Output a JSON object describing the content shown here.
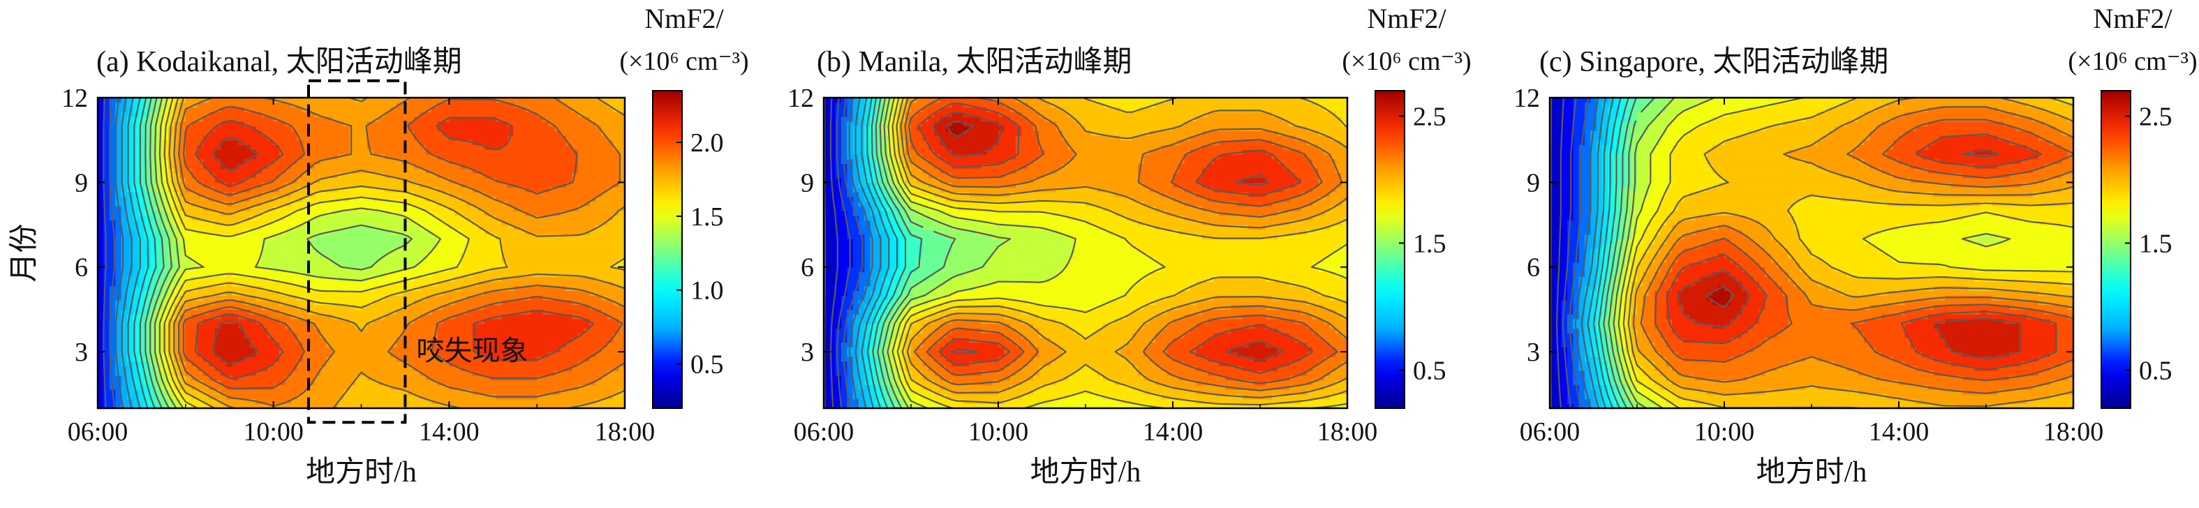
{
  "colors": {
    "colormap": [
      "#00008f",
      "#0000ff",
      "#00b0ff",
      "#00ffff",
      "#7fff7f",
      "#ffff00",
      "#ffa000",
      "#ff3000",
      "#a00000"
    ],
    "contour_line": "#5a5a5a",
    "annotation": "#000000"
  },
  "chart_data": [
    {
      "type": "heatmap",
      "title": "(a) Kodaikanal, 太阳活动峰期",
      "xlabel": "地方时/h",
      "ylabel": "月份",
      "x_ticks": [
        "06:00",
        "10:00",
        "14:00",
        "18:00"
      ],
      "y_ticks": [
        "3",
        "6",
        "9",
        "12"
      ],
      "x_range": [
        6,
        18
      ],
      "y_range": [
        1,
        12
      ],
      "x": [
        6,
        7,
        8,
        9,
        10,
        11,
        12,
        13,
        14,
        15,
        16,
        17,
        18
      ],
      "y": [
        1,
        2,
        3,
        4,
        5,
        6,
        7,
        8,
        9,
        10,
        11,
        12
      ],
      "z": [
        [
          0.4,
          0.9,
          1.5,
          1.75,
          1.85,
          1.8,
          1.7,
          1.7,
          1.75,
          1.8,
          1.8,
          1.75,
          1.7
        ],
        [
          0.4,
          1.0,
          1.8,
          2.05,
          2.0,
          1.85,
          1.75,
          1.8,
          1.9,
          1.95,
          1.95,
          1.9,
          1.8
        ],
        [
          0.4,
          1.1,
          2.0,
          2.25,
          2.1,
          1.9,
          1.8,
          1.9,
          2.0,
          2.1,
          2.1,
          2.0,
          1.9
        ],
        [
          0.4,
          1.1,
          2.0,
          2.2,
          2.0,
          1.85,
          1.75,
          1.85,
          2.0,
          2.1,
          2.15,
          2.1,
          1.95
        ],
        [
          0.4,
          1.0,
          1.7,
          1.8,
          1.7,
          1.6,
          1.6,
          1.7,
          1.8,
          1.9,
          1.95,
          1.9,
          1.8
        ],
        [
          0.4,
          0.9,
          1.45,
          1.5,
          1.45,
          1.4,
          1.35,
          1.45,
          1.55,
          1.65,
          1.7,
          1.7,
          1.65
        ],
        [
          0.4,
          0.9,
          1.5,
          1.55,
          1.45,
          1.35,
          1.3,
          1.35,
          1.5,
          1.65,
          1.75,
          1.75,
          1.7
        ],
        [
          0.4,
          1.0,
          1.7,
          1.8,
          1.65,
          1.5,
          1.45,
          1.5,
          1.65,
          1.8,
          1.9,
          1.85,
          1.75
        ],
        [
          0.4,
          1.1,
          1.9,
          2.1,
          1.95,
          1.75,
          1.7,
          1.75,
          1.85,
          1.95,
          2.0,
          1.95,
          1.85
        ],
        [
          0.4,
          1.1,
          2.0,
          2.25,
          2.1,
          1.9,
          1.85,
          1.9,
          2.0,
          2.05,
          2.05,
          1.95,
          1.85
        ],
        [
          0.4,
          1.1,
          1.95,
          2.1,
          2.0,
          1.9,
          1.85,
          1.95,
          2.1,
          2.1,
          2.0,
          1.9,
          1.8
        ],
        [
          0.4,
          1.0,
          1.8,
          1.9,
          1.85,
          1.8,
          1.75,
          1.85,
          1.95,
          1.95,
          1.9,
          1.8,
          1.7
        ]
      ],
      "zlim": [
        0.2,
        2.35
      ],
      "colorbar": {
        "title_line1": "NmF2/",
        "title_line2": "(×10⁶ cm⁻³)",
        "ticks": [
          0.5,
          1.0,
          1.5,
          2.0
        ],
        "tick_labels": [
          "0.5",
          "1.0",
          "1.5",
          "2.0"
        ]
      },
      "annotation": {
        "text": "咬失现象",
        "x_range": [
          10.8,
          13.0
        ],
        "y_range": [
          0.5,
          12.6
        ]
      }
    },
    {
      "type": "heatmap",
      "title": "(b) Manila, 太阳活动峰期",
      "xlabel": "地方时/h",
      "ylabel": "",
      "x_ticks": [
        "06:00",
        "10:00",
        "14:00",
        "18:00"
      ],
      "y_ticks": [
        "3",
        "6",
        "9",
        "12"
      ],
      "x_range": [
        6,
        18
      ],
      "y_range": [
        1,
        12
      ],
      "x": [
        6,
        7,
        8,
        9,
        10,
        11,
        12,
        13,
        14,
        15,
        16,
        17,
        18
      ],
      "y": [
        1,
        2,
        3,
        4,
        5,
        6,
        7,
        8,
        9,
        10,
        11,
        12
      ],
      "z": [
        [
          0.3,
          0.9,
          1.6,
          1.8,
          1.85,
          1.75,
          1.7,
          1.75,
          1.8,
          1.85,
          1.85,
          1.8,
          1.75
        ],
        [
          0.3,
          1.0,
          1.9,
          2.2,
          2.15,
          1.95,
          1.85,
          1.95,
          2.1,
          2.2,
          2.3,
          2.2,
          2.0
        ],
        [
          0.3,
          1.1,
          2.1,
          2.5,
          2.45,
          2.1,
          1.95,
          2.05,
          2.3,
          2.45,
          2.55,
          2.4,
          2.2
        ],
        [
          0.3,
          1.0,
          1.9,
          2.2,
          2.15,
          1.95,
          1.85,
          1.95,
          2.15,
          2.3,
          2.35,
          2.25,
          2.05
        ],
        [
          0.3,
          0.8,
          1.5,
          1.7,
          1.75,
          1.7,
          1.7,
          1.8,
          1.9,
          2.0,
          2.0,
          1.95,
          1.85
        ],
        [
          0.3,
          0.7,
          1.3,
          1.5,
          1.6,
          1.65,
          1.7,
          1.75,
          1.8,
          1.85,
          1.85,
          1.8,
          1.75
        ],
        [
          0.3,
          0.7,
          1.3,
          1.45,
          1.55,
          1.6,
          1.7,
          1.8,
          1.85,
          1.9,
          1.9,
          1.85,
          1.8
        ],
        [
          0.3,
          0.8,
          1.55,
          1.75,
          1.8,
          1.8,
          1.85,
          1.95,
          2.05,
          2.15,
          2.2,
          2.1,
          1.95
        ],
        [
          0.3,
          1.0,
          1.95,
          2.2,
          2.2,
          2.1,
          2.05,
          2.1,
          2.25,
          2.45,
          2.5,
          2.35,
          2.1
        ],
        [
          0.3,
          1.1,
          2.2,
          2.5,
          2.45,
          2.25,
          2.1,
          2.1,
          2.2,
          2.35,
          2.4,
          2.25,
          2.05
        ],
        [
          0.3,
          1.1,
          2.3,
          2.65,
          2.5,
          2.2,
          2.0,
          1.95,
          2.0,
          2.1,
          2.1,
          2.0,
          1.9
        ],
        [
          0.3,
          1.0,
          2.1,
          2.3,
          2.2,
          2.0,
          1.9,
          1.85,
          1.9,
          1.95,
          1.95,
          1.9,
          1.85
        ]
      ],
      "zlim": [
        0.2,
        2.7
      ],
      "colorbar": {
        "title_line1": "NmF2/",
        "title_line2": "(×10⁶ cm⁻³)",
        "ticks": [
          0.5,
          1.5,
          2.5
        ],
        "tick_labels": [
          "0.5",
          "1.5",
          "2.5"
        ]
      }
    },
    {
      "type": "heatmap",
      "title": "(c) Singapore, 太阳活动峰期",
      "xlabel": "地方时/h",
      "ylabel": "",
      "x_ticks": [
        "06:00",
        "10:00",
        "14:00",
        "18:00"
      ],
      "y_ticks": [
        "3",
        "6",
        "9",
        "12"
      ],
      "x_range": [
        6,
        18
      ],
      "y_range": [
        1,
        12
      ],
      "x": [
        6,
        7,
        8,
        9,
        10,
        11,
        12,
        13,
        14,
        15,
        16,
        17,
        18
      ],
      "y": [
        1,
        2,
        3,
        4,
        5,
        6,
        7,
        8,
        9,
        10,
        11,
        12
      ],
      "z": [
        [
          0.3,
          0.8,
          1.5,
          1.8,
          1.9,
          1.9,
          1.9,
          1.9,
          1.95,
          2.0,
          2.0,
          1.95,
          1.9
        ],
        [
          0.3,
          0.9,
          1.8,
          2.1,
          2.15,
          2.1,
          2.05,
          2.1,
          2.15,
          2.2,
          2.25,
          2.2,
          2.1
        ],
        [
          0.3,
          1.0,
          2.0,
          2.3,
          2.3,
          2.2,
          2.15,
          2.2,
          2.3,
          2.45,
          2.55,
          2.45,
          2.3
        ],
        [
          0.3,
          1.1,
          2.1,
          2.45,
          2.5,
          2.3,
          2.2,
          2.25,
          2.35,
          2.5,
          2.55,
          2.45,
          2.3
        ],
        [
          0.3,
          1.0,
          2.05,
          2.5,
          2.65,
          2.35,
          2.1,
          2.0,
          2.05,
          2.1,
          2.1,
          2.05,
          2.0
        ],
        [
          0.3,
          0.9,
          1.9,
          2.35,
          2.45,
          2.2,
          1.95,
          1.85,
          1.8,
          1.8,
          1.75,
          1.75,
          1.75
        ],
        [
          0.3,
          0.85,
          1.75,
          2.15,
          2.25,
          2.05,
          1.85,
          1.8,
          1.75,
          1.7,
          1.65,
          1.7,
          1.75
        ],
        [
          0.3,
          0.8,
          1.65,
          1.95,
          2.0,
          1.95,
          1.85,
          1.85,
          1.85,
          1.85,
          1.8,
          1.85,
          1.85
        ],
        [
          0.3,
          0.8,
          1.6,
          1.85,
          1.9,
          1.95,
          1.95,
          2.0,
          2.1,
          2.15,
          2.2,
          2.15,
          2.05
        ],
        [
          0.3,
          0.8,
          1.6,
          1.85,
          1.95,
          2.0,
          2.05,
          2.15,
          2.3,
          2.45,
          2.5,
          2.4,
          2.25
        ],
        [
          0.3,
          0.75,
          1.5,
          1.75,
          1.85,
          1.9,
          1.95,
          2.05,
          2.2,
          2.3,
          2.3,
          2.2,
          2.05
        ],
        [
          0.3,
          0.7,
          1.35,
          1.6,
          1.7,
          1.75,
          1.8,
          1.9,
          2.0,
          2.05,
          2.05,
          1.95,
          1.85
        ]
      ],
      "zlim": [
        0.2,
        2.7
      ],
      "colorbar": {
        "title_line1": "NmF2/",
        "title_line2": "(×10⁶ cm⁻³)",
        "ticks": [
          0.5,
          1.5,
          2.5
        ],
        "tick_labels": [
          "0.5",
          "1.5",
          "2.5"
        ]
      }
    }
  ]
}
